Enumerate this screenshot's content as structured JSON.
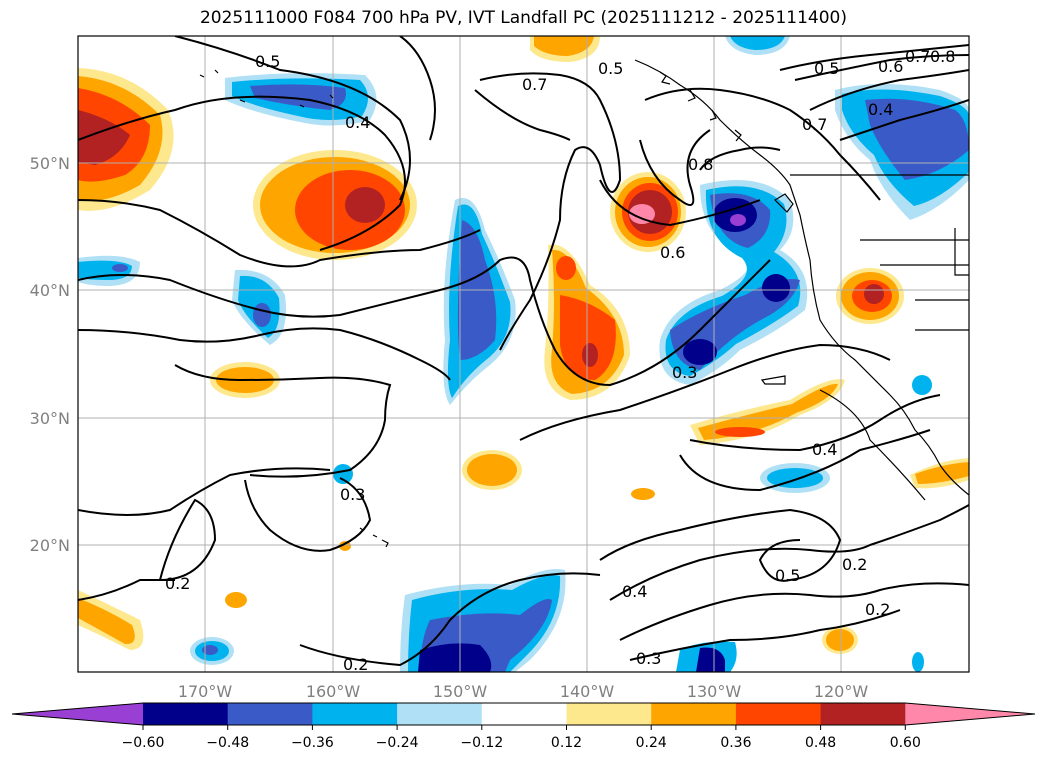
{
  "title": "2025111000 F084 700 hPa PV, IVT Landfall PC (2025111212 - 2025111400)",
  "axes": {
    "lat_labels": [
      "50°N",
      "40°N",
      "30°N",
      "20°N"
    ],
    "lon_labels": [
      "170°W",
      "160°W",
      "150°W",
      "140°W",
      "130°W",
      "120°W"
    ]
  },
  "contour_labels": [
    "0.5",
    "0.4",
    "0.7",
    "0.5",
    "0.5",
    "0.6",
    "0.7",
    "0.8",
    "0.7",
    "0.4",
    "0.8",
    "0.6",
    "0.3",
    "0.3",
    "0.2",
    "0.4",
    "0.4",
    "0.5",
    "0.2",
    "0.2",
    "0.3",
    "0.2"
  ],
  "colorbar": {
    "colors": [
      "#9a3fd4",
      "#00008b",
      "#3a5bc7",
      "#00b2ee",
      "#b0e0f5",
      "#ffffff",
      "#fee88e",
      "#ffa500",
      "#ff4500",
      "#b22222",
      "#ff88aa"
    ],
    "tick_labels": [
      "−0.60",
      "−0.48",
      "−0.36",
      "−0.24",
      "−0.12",
      "0.12",
      "0.24",
      "0.36",
      "0.48",
      "0.60"
    ]
  }
}
